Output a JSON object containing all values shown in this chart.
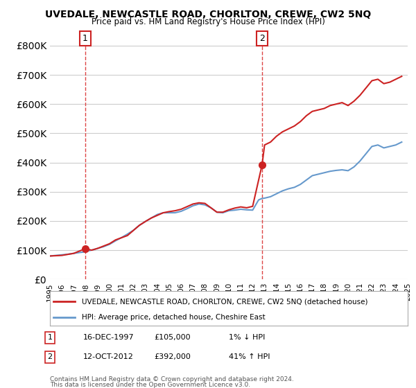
{
  "title": "UVEDALE, NEWCASTLE ROAD, CHORLTON, CREWE, CW2 5NQ",
  "subtitle": "Price paid vs. HM Land Registry's House Price Index (HPI)",
  "legend_line1": "UVEDALE, NEWCASTLE ROAD, CHORLTON, CREWE, CW2 5NQ (detached house)",
  "legend_line2": "HPI: Average price, detached house, Cheshire East",
  "annotation1": {
    "label": "1",
    "date": "16-DEC-1997",
    "price": 105000,
    "pct": "1%",
    "dir": "↓",
    "x": 1997.96
  },
  "annotation2": {
    "label": "2",
    "date": "12-OCT-2012",
    "price": 392000,
    "pct": "41%",
    "dir": "↑",
    "x": 2012.79
  },
  "footer_line1": "Contains HM Land Registry data © Crown copyright and database right 2024.",
  "footer_line2": "This data is licensed under the Open Government Licence v3.0.",
  "ylim": [
    0,
    850000
  ],
  "yticks": [
    0,
    100000,
    200000,
    300000,
    400000,
    500000,
    600000,
    700000,
    800000
  ],
  "background_color": "#ffffff",
  "grid_color": "#cccccc",
  "hpi_line_color": "#6699cc",
  "price_line_color": "#cc2222",
  "dashed_line_color": "#dd4444",
  "marker_color": "#cc2222",
  "annotation_box_color": "#cc2222",
  "hpi_data_x": [
    1995.0,
    1995.5,
    1996.0,
    1996.5,
    1997.0,
    1997.5,
    1997.96,
    1998.0,
    1998.5,
    1999.0,
    1999.5,
    2000.0,
    2000.5,
    2001.0,
    2001.5,
    2002.0,
    2002.5,
    2003.0,
    2003.5,
    2004.0,
    2004.5,
    2005.0,
    2005.5,
    2006.0,
    2006.5,
    2007.0,
    2007.5,
    2008.0,
    2008.5,
    2009.0,
    2009.5,
    2010.0,
    2010.5,
    2011.0,
    2011.5,
    2012.0,
    2012.5,
    2012.79,
    2013.0,
    2013.5,
    2014.0,
    2014.5,
    2015.0,
    2015.5,
    2016.0,
    2016.5,
    2017.0,
    2017.5,
    2018.0,
    2018.5,
    2019.0,
    2019.5,
    2020.0,
    2020.5,
    2021.0,
    2021.5,
    2022.0,
    2022.5,
    2023.0,
    2023.5,
    2024.0,
    2024.5
  ],
  "hpi_data_y": [
    80000,
    82000,
    84000,
    86000,
    89000,
    92000,
    94000,
    96000,
    100000,
    106000,
    112000,
    120000,
    132000,
    143000,
    155000,
    168000,
    185000,
    198000,
    210000,
    222000,
    228000,
    228000,
    228000,
    233000,
    242000,
    252000,
    258000,
    255000,
    245000,
    230000,
    228000,
    235000,
    237000,
    240000,
    238000,
    237000,
    272000,
    277000,
    278000,
    283000,
    293000,
    303000,
    310000,
    315000,
    325000,
    340000,
    355000,
    360000,
    365000,
    370000,
    373000,
    375000,
    372000,
    385000,
    405000,
    430000,
    455000,
    460000,
    450000,
    455000,
    460000,
    470000
  ],
  "price_data_x": [
    1995.0,
    1996.0,
    1997.0,
    1997.96,
    1998.5,
    1999.0,
    1999.5,
    2000.0,
    2000.5,
    2001.5,
    2002.5,
    2003.0,
    2003.5,
    2004.5,
    2005.0,
    2005.5,
    2006.0,
    2007.0,
    2007.5,
    2008.0,
    2009.0,
    2009.5,
    2010.0,
    2010.5,
    2011.0,
    2011.5,
    2012.0,
    2012.79,
    2013.0,
    2013.5,
    2014.0,
    2014.5,
    2015.0,
    2015.5,
    2016.0,
    2016.5,
    2017.0,
    2017.5,
    2018.0,
    2018.5,
    2019.0,
    2019.5,
    2020.0,
    2020.5,
    2021.0,
    2021.5,
    2022.0,
    2022.5,
    2023.0,
    2023.5,
    2024.0,
    2024.5
  ],
  "price_data_y": [
    80000,
    82000,
    89000,
    105000,
    100000,
    106000,
    114000,
    122000,
    135000,
    150000,
    185000,
    198000,
    210000,
    228000,
    232000,
    235000,
    240000,
    258000,
    262000,
    260000,
    230000,
    230000,
    238000,
    244000,
    248000,
    245000,
    250000,
    392000,
    460000,
    470000,
    490000,
    505000,
    515000,
    525000,
    540000,
    560000,
    575000,
    580000,
    585000,
    595000,
    600000,
    605000,
    595000,
    610000,
    630000,
    655000,
    680000,
    685000,
    670000,
    675000,
    685000,
    695000
  ]
}
